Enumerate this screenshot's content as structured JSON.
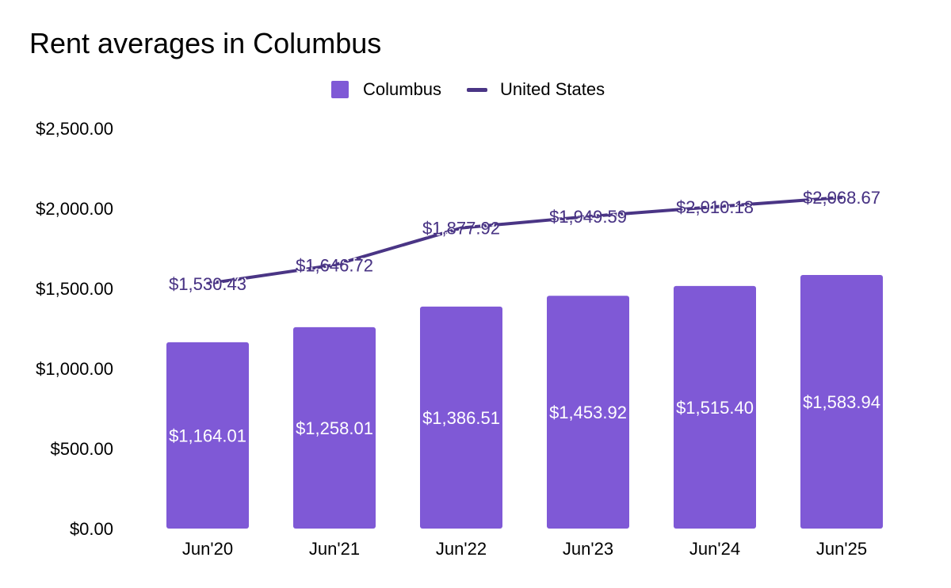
{
  "chart_data": {
    "type": "bar",
    "title": "Rent averages in Columbus",
    "categories": [
      "Jun'20",
      "Jun'21",
      "Jun'22",
      "Jun'23",
      "Jun'24",
      "Jun'25"
    ],
    "series": [
      {
        "name": "Columbus",
        "kind": "bar",
        "color": "#7f59d6",
        "values": [
          1164.01,
          1258.01,
          1386.51,
          1453.92,
          1515.4,
          1583.94
        ],
        "labels": [
          "$1,164.01",
          "$1,258.01",
          "$1,386.51",
          "$1,453.92",
          "$1,515.40",
          "$1,583.94"
        ]
      },
      {
        "name": "United States",
        "kind": "line",
        "color": "#4a3585",
        "values": [
          1530.43,
          1646.72,
          1877.92,
          1949.59,
          2010.18,
          2068.67
        ],
        "labels": [
          "$1,530.43",
          "$1,646.72",
          "$1,877.92",
          "$1,949.59",
          "$2,010.18",
          "$2,068.67"
        ]
      }
    ],
    "yticks": [
      "$0.00",
      "$500.00",
      "$1,000.00",
      "$1,500.00",
      "$2,000.00",
      "$2,500.00"
    ],
    "ylim": [
      0,
      2500
    ],
    "legend_position": "top-center",
    "grid": false
  }
}
